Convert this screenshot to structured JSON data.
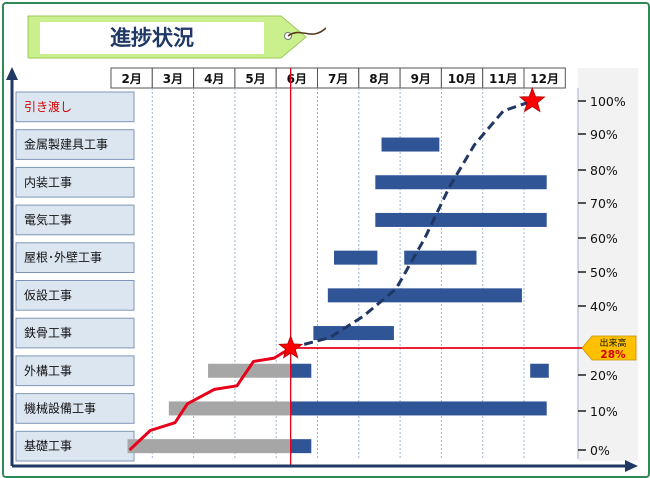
{
  "title_tag": {
    "text": "進捗状況"
  },
  "chart_data": {
    "type": "gantt-with-progress-curve",
    "months": [
      "2月",
      "3月",
      "4月",
      "5月",
      "6月",
      "7月",
      "8月",
      "9月",
      "10月",
      "11月",
      "12月"
    ],
    "tasks": [
      {
        "name": "引き渡し",
        "highlight": true,
        "bars": []
      },
      {
        "name": "金属製建具工事",
        "bars": [
          {
            "start": 8.05,
            "end": 9.45,
            "status": "planned"
          }
        ]
      },
      {
        "name": "内装工事",
        "bars": [
          {
            "start": 7.9,
            "end": 12.05,
            "status": "planned"
          }
        ]
      },
      {
        "name": "電気工事",
        "bars": [
          {
            "start": 7.9,
            "end": 12.05,
            "status": "planned"
          }
        ]
      },
      {
        "name": "屋根･外壁工事",
        "bars": [
          {
            "start": 6.9,
            "end": 7.95,
            "status": "planned"
          },
          {
            "start": 8.6,
            "end": 10.35,
            "status": "planned"
          }
        ]
      },
      {
        "name": "仮設工事",
        "bars": [
          {
            "start": 6.75,
            "end": 11.45,
            "status": "planned"
          }
        ]
      },
      {
        "name": "鉄骨工事",
        "bars": [
          {
            "start": 6.4,
            "end": 8.35,
            "status": "planned"
          }
        ]
      },
      {
        "name": "外構工事",
        "bars": [
          {
            "start": 3.85,
            "end": 5.85,
            "status": "done"
          },
          {
            "start": 5.85,
            "end": 6.35,
            "status": "planned"
          },
          {
            "start": 11.65,
            "end": 12.1,
            "status": "planned"
          }
        ]
      },
      {
        "name": "機械設備工事",
        "bars": [
          {
            "start": 2.9,
            "end": 5.85,
            "status": "done"
          },
          {
            "start": 5.85,
            "end": 12.05,
            "status": "planned"
          }
        ]
      },
      {
        "name": "基礎工事",
        "bars": [
          {
            "start": 1.9,
            "end": 5.85,
            "status": "done"
          },
          {
            "start": 5.85,
            "end": 6.35,
            "status": "planned"
          }
        ]
      }
    ],
    "y_axis": {
      "ticks": [
        {
          "label": "0%",
          "value": 0
        },
        {
          "label": "10%",
          "value": 10
        },
        {
          "label": "20%",
          "value": 20
        },
        {
          "label": "40%",
          "value": 40
        },
        {
          "label": "50%",
          "value": 50
        },
        {
          "label": "60%",
          "value": 60
        },
        {
          "label": "70%",
          "value": 70
        },
        {
          "label": "80%",
          "value": 80
        },
        {
          "label": "90%",
          "value": 90
        },
        {
          "label": "100%",
          "value": 100
        }
      ]
    },
    "current_marker": {
      "label_line1": "出来高",
      "label_line2": "28%",
      "value": 28,
      "month": 5.85
    },
    "progress_actual": [
      {
        "x": 1.95,
        "y": 0
      },
      {
        "x": 2.45,
        "y": 5
      },
      {
        "x": 3.05,
        "y": 7
      },
      {
        "x": 3.35,
        "y": 12
      },
      {
        "x": 4.0,
        "y": 16
      },
      {
        "x": 4.55,
        "y": 17
      },
      {
        "x": 4.95,
        "y": 24
      },
      {
        "x": 5.45,
        "y": 25
      },
      {
        "x": 5.85,
        "y": 28
      }
    ],
    "progress_planned": [
      {
        "x": 5.85,
        "y": 28
      },
      {
        "x": 6.8,
        "y": 31
      },
      {
        "x": 7.6,
        "y": 37
      },
      {
        "x": 8.4,
        "y": 45
      },
      {
        "x": 9.1,
        "y": 60
      },
      {
        "x": 9.7,
        "y": 75
      },
      {
        "x": 10.3,
        "y": 87
      },
      {
        "x": 11.0,
        "y": 97
      },
      {
        "x": 11.7,
        "y": 100
      }
    ],
    "handover_marker": {
      "x": 11.7,
      "y": 100
    },
    "colors": {
      "planned_bar": "#2f5597",
      "done_bar": "#a6a6a6",
      "actual_line": "#e8001b",
      "planned_line": "#1f3864",
      "marker_line": "#e8001b",
      "star": "#ff0000",
      "label_box": "#dce6f1",
      "badge": "#ffc000",
      "tag": "#c9f08c"
    }
  }
}
